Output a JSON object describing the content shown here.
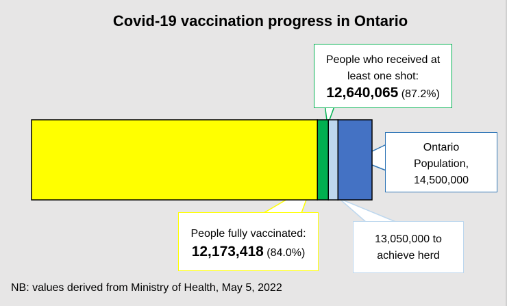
{
  "chart_data": {
    "type": "bar",
    "orientation": "horizontal",
    "title": "Covid-19 vaccination progress in Ontario",
    "xlim": [
      0,
      14500000
    ],
    "grid": false,
    "segments": [
      {
        "label": "People fully vaccinated:",
        "value": 12173418,
        "value_label": "12,173,418",
        "pct": "(84.0%)",
        "color": "#ffff00"
      },
      {
        "label": "People who received at least one shot:",
        "value": 12640065,
        "value_label": "12,640,065",
        "pct": "(87.2%)",
        "color": "#00b050"
      },
      {
        "label": "13,050,000 to achieve herd",
        "value": 13050000,
        "color": "#bdd7ee"
      },
      {
        "label": "Ontario Population, 14,500,000",
        "value": 14500000,
        "color": "#4472c4"
      }
    ]
  },
  "note": "NB: values derived from Ministry of Health, May 5, 2022"
}
